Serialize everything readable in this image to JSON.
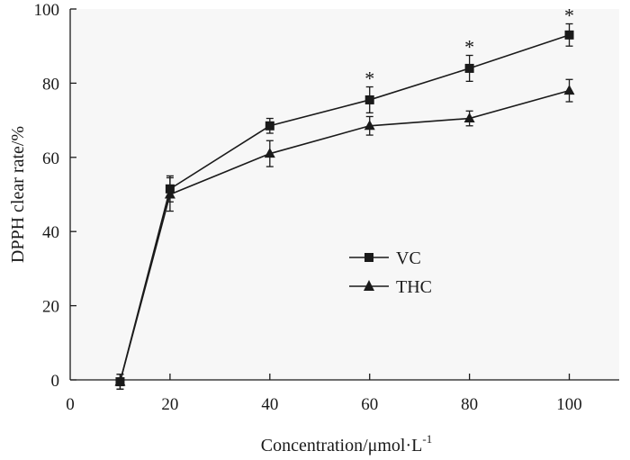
{
  "chart_data": {
    "type": "line",
    "title": "",
    "xlabel": "Concentration/μmol·L",
    "xlabel_superscript": "-1",
    "ylabel": "DPPH clear rate/%",
    "xlim": [
      0,
      110
    ],
    "ylim": [
      0,
      100
    ],
    "xticks": [
      0,
      20,
      40,
      60,
      80,
      100
    ],
    "xtick_labels": [
      "0",
      "20",
      "40",
      "60",
      "80",
      "100"
    ],
    "yticks": [
      0,
      20,
      40,
      60,
      80,
      100
    ],
    "ytick_labels": [
      "0",
      "20",
      "40",
      "60",
      "80",
      "100"
    ],
    "grid": false,
    "legend_position": "center-right",
    "series": [
      {
        "name": "VC",
        "marker": "square",
        "x": [
          10,
          20,
          40,
          60,
          80,
          100
        ],
        "values": [
          -0.5,
          51.5,
          68.5,
          75.5,
          84,
          93
        ],
        "errors": [
          2,
          3.5,
          2,
          3.5,
          3.5,
          3
        ],
        "significant": [
          false,
          false,
          false,
          true,
          true,
          true
        ]
      },
      {
        "name": "THC",
        "marker": "triangle",
        "x": [
          10,
          20,
          40,
          60,
          80,
          100
        ],
        "values": [
          -0.5,
          50,
          61,
          68.5,
          70.5,
          78
        ],
        "errors": [
          2,
          4.5,
          3.5,
          2.5,
          2,
          3
        ]
      }
    ],
    "annotations": {
      "significance_symbol": "*"
    }
  }
}
